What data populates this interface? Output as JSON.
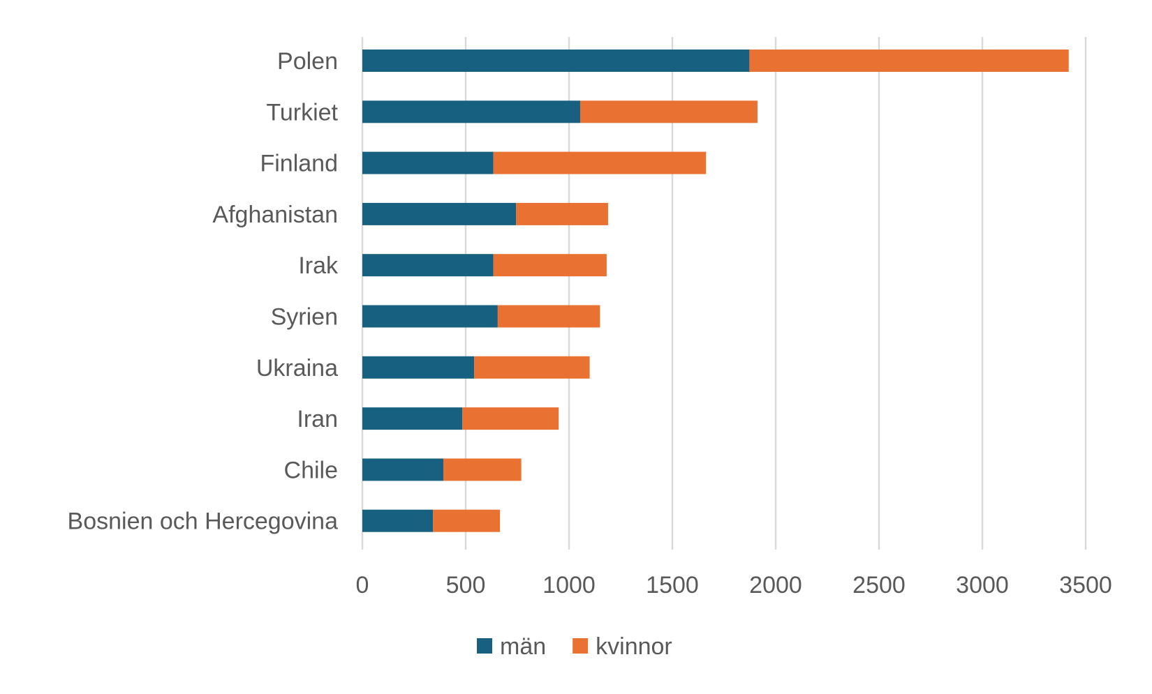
{
  "chart_data": {
    "type": "bar",
    "orientation": "horizontal",
    "stacked": true,
    "title": "",
    "xlabel": "",
    "ylabel": "",
    "categories": [
      "Polen",
      "Turkiet",
      "Finland",
      "Afghanistan",
      "Irak",
      "Syrien",
      "Ukraina",
      "Iran",
      "Chile",
      "Bosnien och Hercegovina"
    ],
    "series": [
      {
        "name": "män",
        "color": "#17607f",
        "values": [
          1873,
          1054,
          634,
          744,
          634,
          655,
          541,
          484,
          392,
          342
        ]
      },
      {
        "name": "kvinnor",
        "color": "#e97132",
        "values": [
          1545,
          858,
          1029,
          445,
          548,
          495,
          559,
          466,
          377,
          324
        ]
      }
    ],
    "xlim": [
      0,
      3500
    ],
    "xticks": [
      "0",
      "500",
      "1000",
      "1500",
      "2000",
      "2500",
      "3000",
      "3500"
    ],
    "grid": true,
    "gridline_color": "#d9d9d9",
    "legend": "bottom"
  }
}
